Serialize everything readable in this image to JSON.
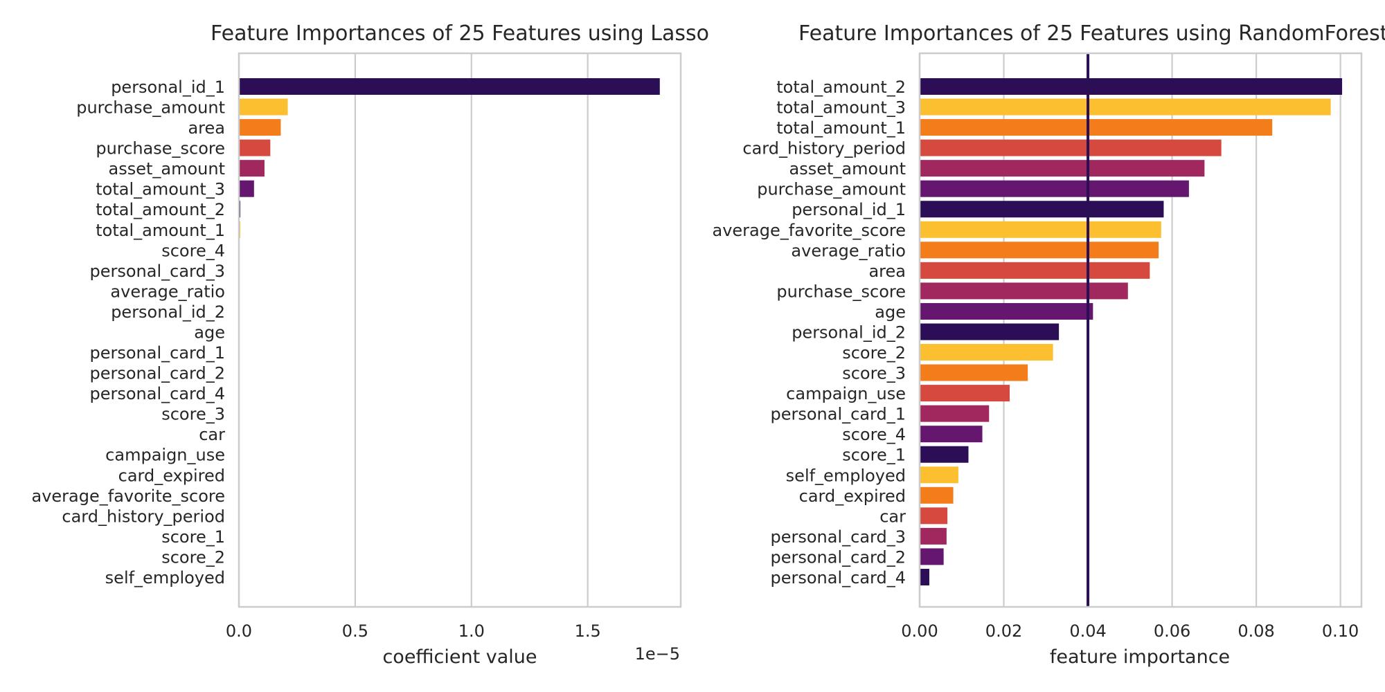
{
  "chart_data": [
    {
      "type": "bar",
      "orientation": "horizontal",
      "title": "Feature Importances of 25 Features using Lasso",
      "xlabel": "coefficient value",
      "ylabel": "",
      "x_offset_label": "1e−5",
      "x_ticks": [
        "0.0",
        "0.5",
        "1.0",
        "1.5"
      ],
      "x_tick_values": [
        0.0,
        5e-06,
        1e-05,
        1.5e-05
      ],
      "xlim": [
        0,
        1.9e-05
      ],
      "grid": "vertical",
      "legend": "none",
      "palette": [
        "#2b0e55",
        "#fbbf2f",
        "#f37d1b",
        "#d5493f",
        "#a0285f",
        "#65166f"
      ],
      "categories": [
        "personal_id_1",
        "purchase_amount",
        "area",
        "purchase_score",
        "asset_amount",
        "total_amount_3",
        "total_amount_2",
        "total_amount_1",
        "score_4",
        "personal_card_3",
        "average_ratio",
        "personal_id_2",
        "age",
        "personal_card_1",
        "personal_card_2",
        "personal_card_4",
        "score_3",
        "car",
        "campaign_use",
        "card_expired",
        "average_favorite_score",
        "card_history_period",
        "score_1",
        "score_2",
        "self_employed"
      ],
      "values": [
        1.81e-05,
        2.1e-06,
        1.8e-06,
        1.35e-06,
        1.1e-06,
        6.5e-07,
        6e-08,
        6e-08,
        0,
        0,
        0,
        0,
        0,
        0,
        0,
        0,
        0,
        0,
        0,
        0,
        0,
        0,
        0,
        0,
        0
      ]
    },
    {
      "type": "bar",
      "orientation": "horizontal",
      "title": "Feature Importances of 25 Features using RandomForest",
      "xlabel": "feature importance",
      "ylabel": "",
      "x_ticks": [
        "0.00",
        "0.02",
        "0.04",
        "0.06",
        "0.08",
        "0.10"
      ],
      "x_tick_values": [
        0.0,
        0.02,
        0.04,
        0.06,
        0.08,
        0.1
      ],
      "xlim": [
        0,
        0.105
      ],
      "grid": "vertical",
      "legend": "none",
      "reference_line": {
        "x": 0.04,
        "color": "#2b0e55"
      },
      "palette": [
        "#2b0e55",
        "#fbbf2f",
        "#f37d1b",
        "#d5493f",
        "#a0285f",
        "#65166f"
      ],
      "categories": [
        "total_amount_2",
        "total_amount_3",
        "total_amount_1",
        "card_history_period",
        "asset_amount",
        "purchase_amount",
        "personal_id_1",
        "average_favorite_score",
        "average_ratio",
        "area",
        "purchase_score",
        "age",
        "personal_id_2",
        "score_2",
        "score_3",
        "campaign_use",
        "personal_card_1",
        "score_4",
        "score_1",
        "self_employed",
        "card_expired",
        "car",
        "personal_card_3",
        "personal_card_2",
        "personal_card_4"
      ],
      "values": [
        0.1004,
        0.0977,
        0.0838,
        0.0717,
        0.0677,
        0.064,
        0.058,
        0.0574,
        0.0568,
        0.0547,
        0.0495,
        0.0412,
        0.0331,
        0.0317,
        0.0257,
        0.0214,
        0.0165,
        0.0149,
        0.0116,
        0.0092,
        0.008,
        0.0066,
        0.0064,
        0.0057,
        0.0023
      ]
    }
  ]
}
